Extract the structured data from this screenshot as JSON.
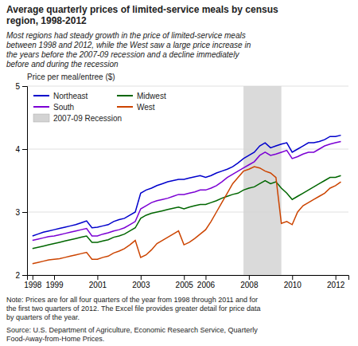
{
  "chart_data": {
    "type": "line",
    "title": "Average quarterly prices of limited-service meals by census\nregion, 1998-2012",
    "subtitle": "Most regions had steady growth in the price of limited-service meals\nbetween 1998 and 2012, while the West saw a large price increase in\nthe years before the 2007-09 recession and a decline immediately\nbefore and during the recession",
    "ylabel": "Price per meal/entree ($)",
    "note": "Note: Prices are for all four quarters of the year from 1998 through 2011 and for\nthe first two quarters of 2012. The Excel file provides greater detail for price data\nby quarters of the year.",
    "source": "Source: U.S. Department of Agriculture, Economic Research Service, Quarterly\nFood-Away-from-Home Prices.",
    "x": [
      1998,
      1998.25,
      1998.5,
      1998.75,
      1999,
      1999.25,
      1999.5,
      1999.75,
      2000,
      2000.25,
      2000.5,
      2000.75,
      2001,
      2001.25,
      2001.5,
      2001.75,
      2002,
      2002.25,
      2002.5,
      2002.75,
      2003,
      2003.25,
      2003.5,
      2003.75,
      2004,
      2004.25,
      2004.5,
      2004.75,
      2005,
      2005.25,
      2005.5,
      2005.75,
      2006,
      2006.25,
      2006.5,
      2006.75,
      2007,
      2007.25,
      2007.5,
      2007.75,
      2008,
      2008.25,
      2008.5,
      2008.75,
      2009,
      2009.25,
      2009.5,
      2009.75,
      2010,
      2010.25,
      2010.5,
      2010.75,
      2011,
      2011.25,
      2011.5,
      2011.75,
      2012,
      2012.25
    ],
    "series": [
      {
        "name": "Northeast",
        "color": "#0000cc",
        "values": [
          2.62,
          2.65,
          2.68,
          2.7,
          2.72,
          2.74,
          2.76,
          2.78,
          2.8,
          2.83,
          2.86,
          2.75,
          2.76,
          2.78,
          2.8,
          2.85,
          2.88,
          2.9,
          2.95,
          3.0,
          3.3,
          3.35,
          3.38,
          3.42,
          3.45,
          3.48,
          3.5,
          3.52,
          3.52,
          3.54,
          3.56,
          3.58,
          3.55,
          3.58,
          3.62,
          3.65,
          3.68,
          3.72,
          3.78,
          3.85,
          3.9,
          3.95,
          4.05,
          4.1,
          4.02,
          4.05,
          4.08,
          4.1,
          3.95,
          4.0,
          4.05,
          4.1,
          4.1,
          4.12,
          4.15,
          4.2,
          4.2,
          4.22
        ]
      },
      {
        "name": "South",
        "color": "#7b00d4",
        "values": [
          2.55,
          2.57,
          2.59,
          2.61,
          2.62,
          2.64,
          2.66,
          2.68,
          2.7,
          2.72,
          2.74,
          2.62,
          2.62,
          2.65,
          2.67,
          2.7,
          2.72,
          2.75,
          2.8,
          2.85,
          3.05,
          3.1,
          3.15,
          3.18,
          3.2,
          3.22,
          3.25,
          3.28,
          3.28,
          3.3,
          3.32,
          3.35,
          3.35,
          3.38,
          3.42,
          3.48,
          3.55,
          3.6,
          3.65,
          3.7,
          3.75,
          3.8,
          3.9,
          3.95,
          3.9,
          3.92,
          3.95,
          3.98,
          3.85,
          3.88,
          3.92,
          3.95,
          3.95,
          4.0,
          4.05,
          4.08,
          4.1,
          4.12
        ]
      },
      {
        "name": "Midwest",
        "color": "#006600",
        "values": [
          2.42,
          2.44,
          2.46,
          2.48,
          2.5,
          2.52,
          2.54,
          2.56,
          2.58,
          2.6,
          2.62,
          2.52,
          2.52,
          2.54,
          2.56,
          2.6,
          2.62,
          2.65,
          2.7,
          2.75,
          2.9,
          2.95,
          2.98,
          3.0,
          3.02,
          3.04,
          3.06,
          3.08,
          3.05,
          3.08,
          3.1,
          3.12,
          3.12,
          3.15,
          3.18,
          3.22,
          3.25,
          3.28,
          3.3,
          3.35,
          3.38,
          3.4,
          3.45,
          3.5,
          3.45,
          3.48,
          3.38,
          3.3,
          3.2,
          3.25,
          3.3,
          3.35,
          3.4,
          3.45,
          3.5,
          3.55,
          3.55,
          3.58
        ]
      },
      {
        "name": "West",
        "color": "#cc4400",
        "values": [
          2.18,
          2.2,
          2.22,
          2.24,
          2.25,
          2.26,
          2.28,
          2.3,
          2.32,
          2.34,
          2.36,
          2.25,
          2.25,
          2.28,
          2.3,
          2.35,
          2.38,
          2.42,
          2.48,
          2.55,
          2.28,
          2.32,
          2.4,
          2.5,
          2.55,
          2.6,
          2.65,
          2.7,
          2.48,
          2.52,
          2.58,
          2.65,
          2.72,
          2.85,
          3.0,
          3.15,
          3.3,
          3.45,
          3.55,
          3.65,
          3.68,
          3.72,
          3.7,
          3.65,
          3.62,
          3.55,
          2.82,
          2.85,
          2.8,
          3.0,
          3.1,
          3.15,
          3.2,
          3.25,
          3.3,
          3.38,
          3.42,
          3.48
        ]
      }
    ],
    "recession": {
      "start": 2007.75,
      "end": 2009.5,
      "label": "2007-09 Recession",
      "color": "#d3d3d3"
    },
    "xlim": [
      1997.75,
      2012.6
    ],
    "xticks": [
      1998,
      1999,
      2001,
      2003,
      2005,
      2006,
      2008,
      2010,
      2012
    ],
    "ylim": [
      2,
      5
    ],
    "yticks": [
      2,
      3,
      4,
      5
    ],
    "grid": true,
    "legend": "upper left"
  }
}
